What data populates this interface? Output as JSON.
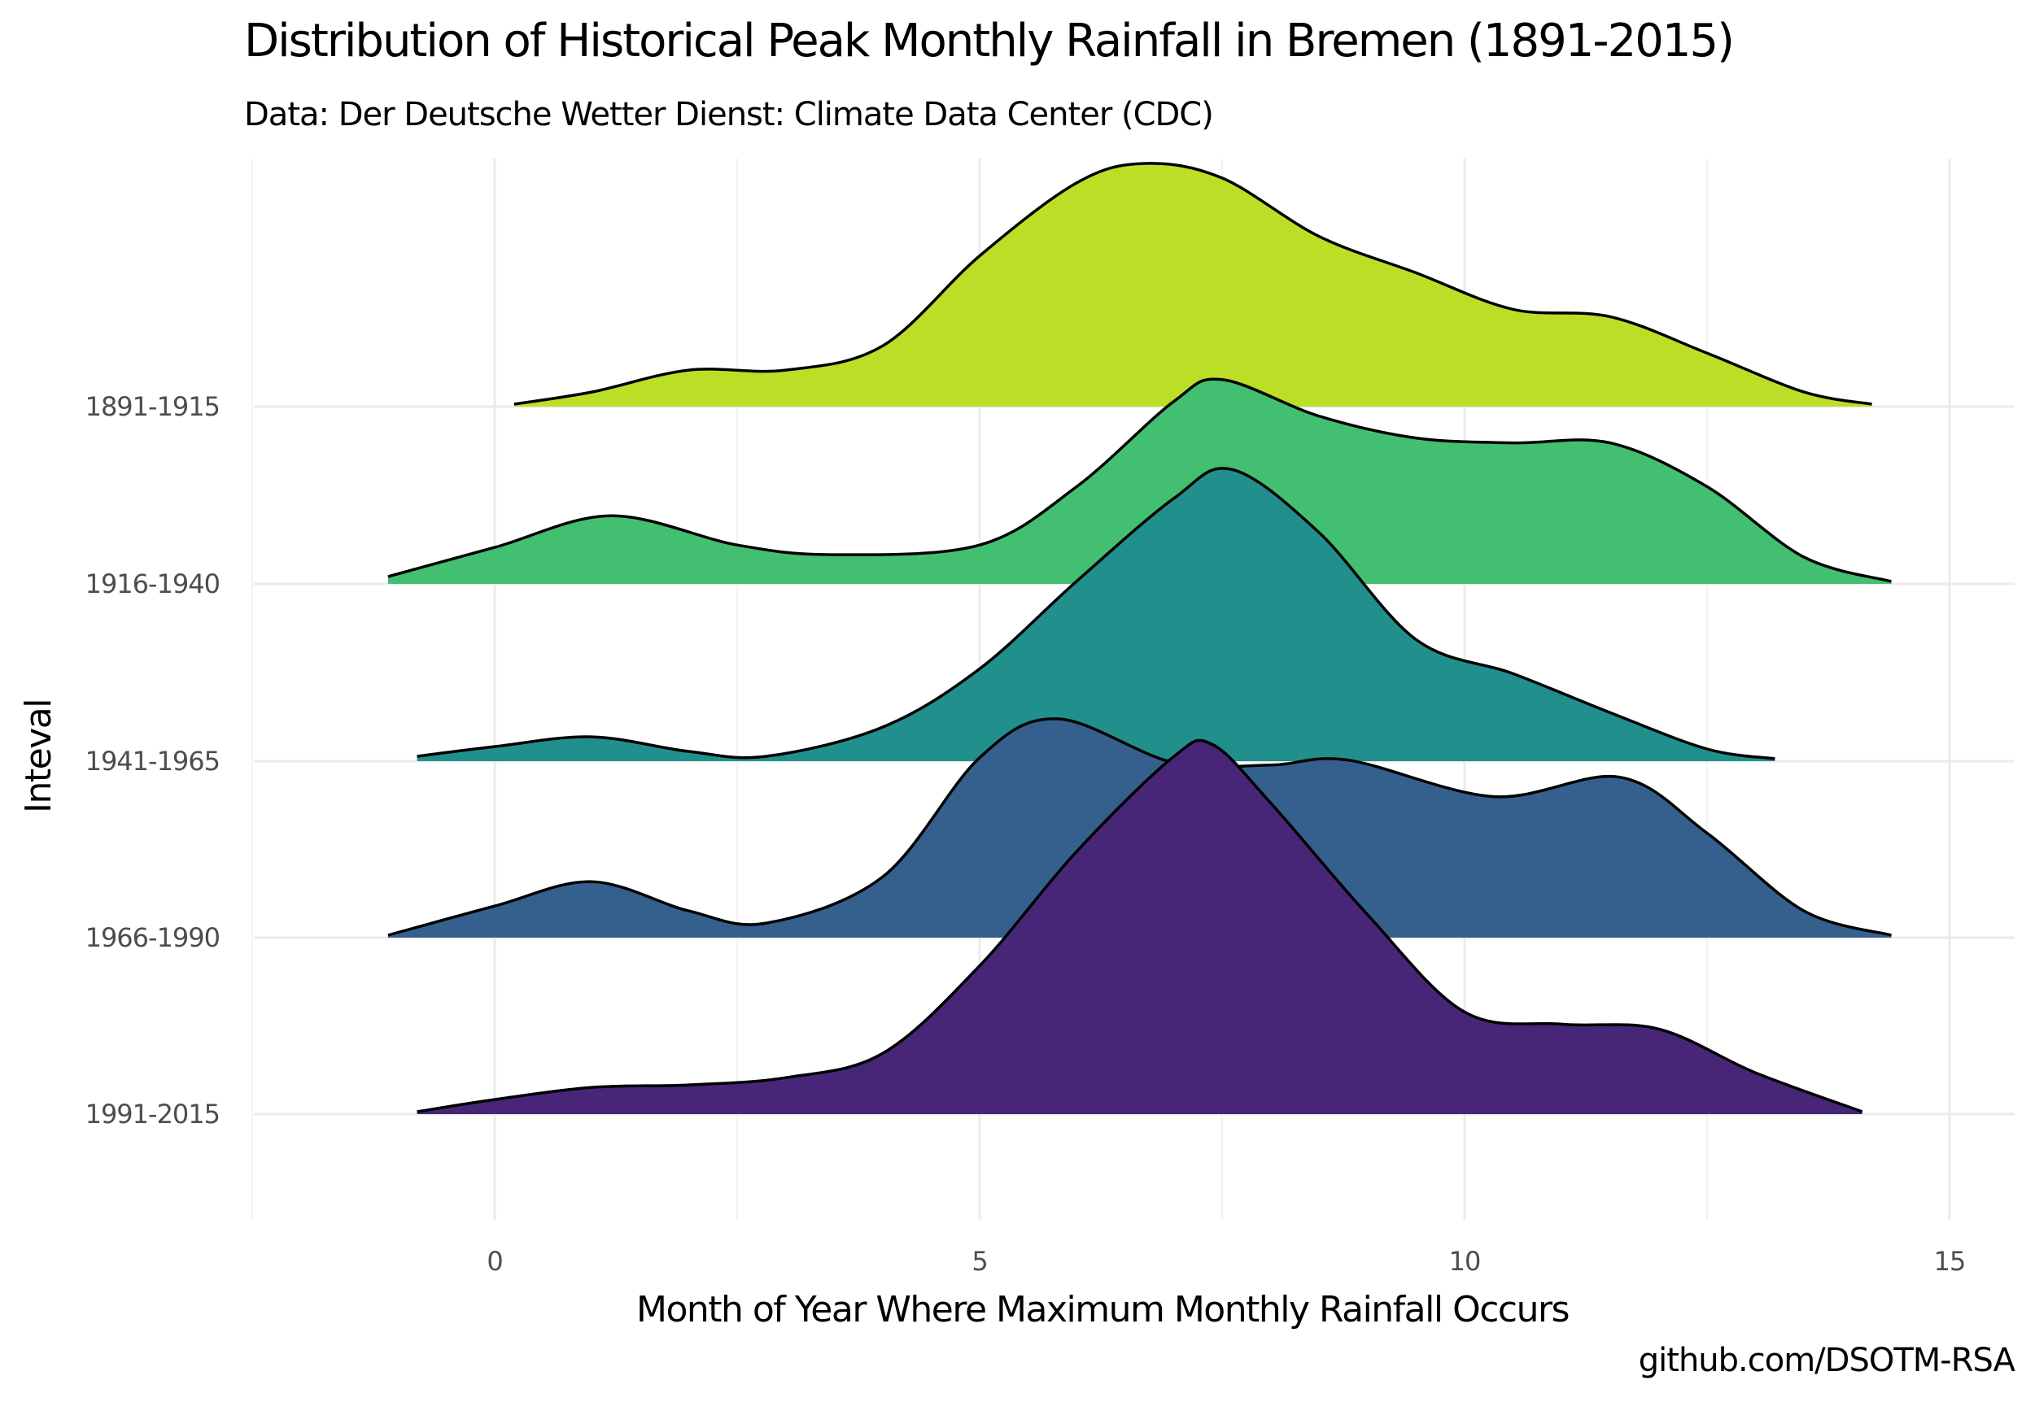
{
  "title": "Distribution of Historical Peak Monthly Rainfall in Bremen (1891-2015)",
  "subtitle": "Data: Der Deutsche Wetter Dienst: Climate Data Center (CDC)",
  "caption": "github.com/DSOTM-RSA",
  "chart_data": {
    "type": "ridgeline",
    "title": "Distribution of Historical Peak Monthly Rainfall in Bremen (1891-2015)",
    "subtitle": "Data: Der Deutsche Wetter Dienst: Climate Data Center (CDC)",
    "xlabel": "Month of Year Where Maximum Monthly Rainfall Occurs",
    "ylabel": "Inteval",
    "xlim": [
      -2.5,
      15.5
    ],
    "x_ticks": [
      0,
      5,
      10,
      15
    ],
    "x_tick_labels": [
      "0",
      "5",
      "10",
      "15"
    ],
    "grid": true,
    "series": [
      {
        "name": "1891-1915",
        "color": "#bbdf27",
        "x": [
          0.2,
          1.0,
          2.0,
          3.0,
          4.0,
          5.0,
          6.0,
          6.7,
          7.5,
          8.5,
          9.5,
          10.5,
          11.5,
          12.5,
          13.5,
          14.2
        ],
        "density": [
          0.01,
          0.06,
          0.15,
          0.15,
          0.25,
          0.62,
          0.92,
          1.0,
          0.94,
          0.7,
          0.55,
          0.4,
          0.37,
          0.22,
          0.06,
          0.01
        ]
      },
      {
        "name": "1916-1940",
        "color": "#43bf71",
        "x": [
          -1.1,
          0.0,
          1.2,
          2.5,
          3.5,
          5.0,
          6.0,
          7.0,
          7.5,
          8.5,
          9.5,
          10.5,
          11.5,
          12.5,
          13.5,
          14.4
        ],
        "density": [
          0.03,
          0.15,
          0.28,
          0.16,
          0.12,
          0.16,
          0.4,
          0.75,
          0.84,
          0.69,
          0.6,
          0.58,
          0.58,
          0.4,
          0.11,
          0.01
        ]
      },
      {
        "name": "1941-1965",
        "color": "#21908d",
        "x": [
          -0.8,
          0.0,
          1.0,
          2.0,
          2.8,
          4.0,
          5.0,
          6.0,
          7.0,
          7.6,
          8.5,
          9.5,
          10.5,
          11.5,
          12.5,
          13.2
        ],
        "density": [
          0.02,
          0.06,
          0.1,
          0.04,
          0.02,
          0.14,
          0.38,
          0.74,
          1.08,
          1.2,
          0.94,
          0.5,
          0.36,
          0.2,
          0.05,
          0.01
        ]
      },
      {
        "name": "1966-1990",
        "color": "#35608d",
        "x": [
          -1.1,
          0.0,
          1.0,
          2.0,
          2.8,
          4.0,
          5.0,
          5.8,
          7.0,
          8.0,
          8.8,
          10.3,
          11.6,
          12.5,
          13.5,
          14.4
        ],
        "density": [
          0.01,
          0.13,
          0.23,
          0.11,
          0.06,
          0.25,
          0.74,
          0.9,
          0.72,
          0.71,
          0.73,
          0.58,
          0.66,
          0.43,
          0.11,
          0.01
        ]
      },
      {
        "name": "1991-2015",
        "color": "#472677",
        "x": [
          -0.8,
          0.0,
          1.0,
          2.0,
          3.0,
          4.0,
          5.0,
          6.0,
          7.0,
          7.4,
          8.0,
          9.0,
          10.0,
          11.0,
          12.0,
          13.0,
          14.1
        ],
        "density": [
          0.01,
          0.06,
          0.11,
          0.12,
          0.15,
          0.25,
          0.61,
          1.08,
          1.47,
          1.52,
          1.28,
          0.82,
          0.42,
          0.37,
          0.35,
          0.17,
          0.01
        ]
      }
    ]
  }
}
